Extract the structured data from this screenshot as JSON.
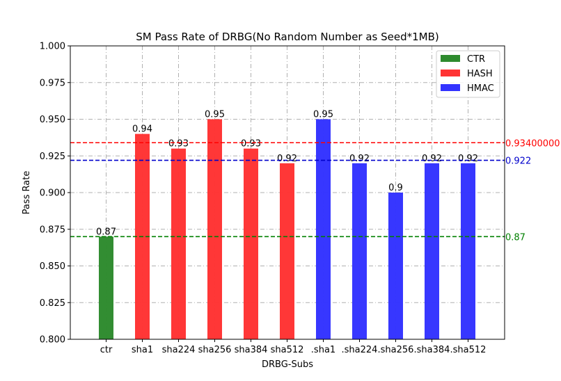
{
  "chart_data": {
    "type": "bar",
    "title": "SM Pass Rate of DRBG(No Random Number as Seed*1MB)",
    "xlabel": "DRBG-Subs",
    "ylabel": "Pass Rate",
    "ylim": [
      0.8,
      1.0
    ],
    "yticks": [
      "0.800",
      "0.825",
      "0.850",
      "0.875",
      "0.900",
      "0.925",
      "0.950",
      "0.975",
      "1.000"
    ],
    "categories": [
      "ctr",
      "sha1",
      "sha224",
      "sha256",
      "sha384",
      "sha512",
      ".sha1",
      ".sha224",
      ".sha256",
      ".sha384",
      ".sha512"
    ],
    "values": [
      0.87,
      0.94,
      0.93,
      0.95,
      0.93,
      0.92,
      0.95,
      0.92,
      0.9,
      0.92,
      0.92
    ],
    "value_labels": [
      "0.87",
      "0.94",
      "0.93",
      "0.95",
      "0.93",
      "0.92",
      "0.95",
      "0.92",
      "0.9",
      "0.92",
      "0.92"
    ],
    "groups": [
      "CTR",
      "HASH",
      "HASH",
      "HASH",
      "HASH",
      "HASH",
      "HMAC",
      "HMAC",
      "HMAC",
      "HMAC",
      "HMAC"
    ],
    "series": [
      {
        "name": "CTR",
        "color": "#2e8b2e"
      },
      {
        "name": "HASH",
        "color": "#ff3333"
      },
      {
        "name": "HMAC",
        "color": "#3333ff"
      }
    ],
    "reference_lines": [
      {
        "value": 0.934,
        "label": "0.93400000",
        "color": "#ff0000"
      },
      {
        "value": 0.922,
        "label": "0.922",
        "color": "#0000cc"
      },
      {
        "value": 0.87,
        "label": "0.87",
        "color": "#008000"
      }
    ],
    "grid": true,
    "legend_position": "top-right"
  }
}
